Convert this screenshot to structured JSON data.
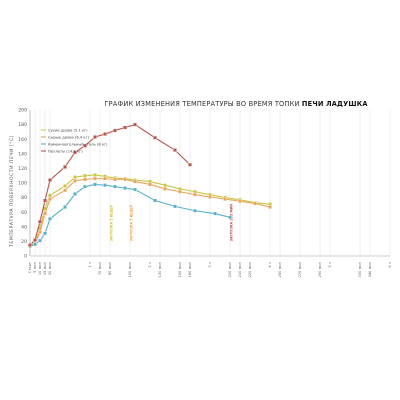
{
  "chart_data": {
    "type": "line",
    "title_part1": "ГРАФИК ИЗМЕНЕНИЯ ТЕМПЕРАТУРЫ ВО ВРЕМЯ ТОПКИ ",
    "title_part2": "ПЕЧИ ЛАДУШКА",
    "ylabel": "ТЕМПЕРАТУРА ПОВЕРХНОСТИ ПЕЧИ [°C]",
    "xlabel": "",
    "ylim": [
      0,
      200
    ],
    "yticks": [
      0,
      20,
      40,
      60,
      80,
      100,
      120,
      140,
      160,
      180,
      200
    ],
    "x_ticks": [
      "Старт",
      "5 мин",
      "10 мин",
      "15 мин",
      "20 мин",
      "1 ч",
      "70 мин",
      "80 мин",
      "100 мин",
      "2 ч",
      "130 мин",
      "150 мин",
      "160 мин",
      "3 ч",
      "200 мин",
      "210 мин",
      "220 мин",
      "4 ч",
      "250 мин",
      "270 мин",
      "290 мин",
      "5 ч",
      "330 мин",
      "340 мин",
      "6 ч"
    ],
    "x_minutes": [
      0,
      5,
      10,
      15,
      20,
      60,
      70,
      80,
      100,
      120,
      130,
      150,
      160,
      180,
      200,
      210,
      220,
      240,
      250,
      270,
      290,
      300,
      330,
      340,
      360
    ],
    "x_range": [
      0,
      360
    ],
    "grid": "vertical",
    "legend_position": "top-left",
    "series": [
      {
        "name": "Сухие дрова (5,1 кг)",
        "color": "#c9c545",
        "points": [
          [
            0,
            14
          ],
          [
            5,
            18
          ],
          [
            10,
            38
          ],
          [
            15,
            65
          ],
          [
            20,
            83
          ],
          [
            35,
            96
          ],
          [
            45,
            108
          ],
          [
            55,
            110
          ],
          [
            65,
            111
          ],
          [
            75,
            109
          ],
          [
            85,
            107
          ],
          [
            95,
            106
          ],
          [
            105,
            104
          ],
          [
            120,
            102
          ],
          [
            135,
            97
          ],
          [
            150,
            92
          ],
          [
            165,
            88
          ],
          [
            180,
            84
          ],
          [
            195,
            80
          ],
          [
            210,
            77
          ],
          [
            225,
            73
          ],
          [
            240,
            71
          ]
        ]
      },
      {
        "name": "Сырые дрова (6,4 кг)",
        "color": "#e8a55a",
        "points": [
          [
            0,
            13
          ],
          [
            5,
            16
          ],
          [
            10,
            33
          ],
          [
            15,
            58
          ],
          [
            20,
            78
          ],
          [
            35,
            90
          ],
          [
            45,
            103
          ],
          [
            55,
            105
          ],
          [
            65,
            106
          ],
          [
            75,
            106
          ],
          [
            85,
            105
          ],
          [
            95,
            105
          ],
          [
            105,
            102
          ],
          [
            120,
            98
          ],
          [
            135,
            92
          ],
          [
            150,
            88
          ],
          [
            165,
            84
          ],
          [
            180,
            81
          ],
          [
            195,
            78
          ],
          [
            210,
            75
          ],
          [
            225,
            72
          ],
          [
            240,
            67
          ]
        ]
      },
      {
        "name": "Каменноугольный уголь (8 кг)",
        "color": "#5ab0c8",
        "points": [
          [
            0,
            14
          ],
          [
            5,
            16
          ],
          [
            10,
            21
          ],
          [
            15,
            31
          ],
          [
            20,
            51
          ],
          [
            35,
            67
          ],
          [
            45,
            85
          ],
          [
            55,
            95
          ],
          [
            65,
            98
          ],
          [
            75,
            97
          ],
          [
            85,
            95
          ],
          [
            95,
            93
          ],
          [
            105,
            91
          ],
          [
            125,
            76
          ],
          [
            145,
            68
          ],
          [
            165,
            62
          ],
          [
            185,
            58
          ],
          [
            200,
            53
          ]
        ]
      },
      {
        "name": "Пеллеты (14,2 кг)",
        "color": "#b85550",
        "points": [
          [
            0,
            15
          ],
          [
            5,
            22
          ],
          [
            10,
            47
          ],
          [
            15,
            76
          ],
          [
            20,
            104
          ],
          [
            35,
            122
          ],
          [
            45,
            142
          ],
          [
            55,
            151
          ],
          [
            65,
            163
          ],
          [
            75,
            167
          ],
          [
            85,
            172
          ],
          [
            95,
            176
          ],
          [
            105,
            180
          ],
          [
            125,
            162
          ],
          [
            145,
            145
          ],
          [
            160,
            125
          ]
        ]
      }
    ],
    "annotations": [
      {
        "text": "ЗАГРУЗКА 5 ВЕДЕР",
        "color": "#c9c545",
        "x": 80
      },
      {
        "text": "ЗАГРУЗКА 5 ВЕДЕР",
        "color": "#e8a55a",
        "x": 100
      },
      {
        "text": "ЗАГРУЗКА 200 МИН",
        "color": "#b85550",
        "x": 200
      }
    ]
  }
}
